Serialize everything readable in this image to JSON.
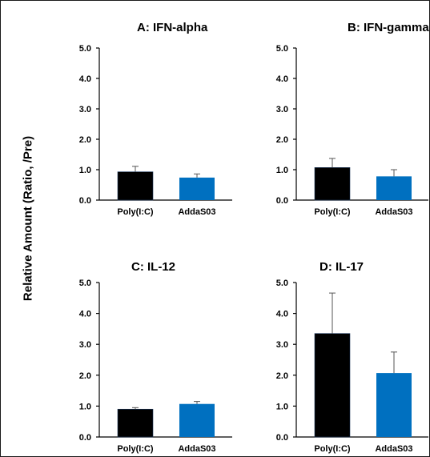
{
  "ylabel": "Relative Amount (Ratio, /Pre)",
  "colors": {
    "black_bar": "#000000",
    "blue_bar": "#0070C0",
    "axis": "#000000",
    "error_bar": "#555555"
  },
  "chart_data": [
    {
      "type": "bar",
      "title": "A: IFN-alpha",
      "categories": [
        "Poly(I:C)",
        "AddaS03"
      ],
      "values": [
        0.93,
        0.74
      ],
      "errors": [
        0.18,
        0.12
      ],
      "ylim": [
        0,
        5
      ],
      "yticks": [
        "0.0",
        "1.0",
        "2.0",
        "3.0",
        "4.0",
        "5.0"
      ],
      "grid": false
    },
    {
      "type": "bar",
      "title": "B: IFN-gamma",
      "categories": [
        "Poly(I:C)",
        "AddaS03"
      ],
      "values": [
        1.07,
        0.78
      ],
      "errors": [
        0.3,
        0.22
      ],
      "ylim": [
        0,
        5
      ],
      "yticks": [
        "0.0",
        "1.0",
        "2.0",
        "3.0",
        "4.0",
        "5.0"
      ],
      "grid": false
    },
    {
      "type": "bar",
      "title": "C: IL-12",
      "categories": [
        "Poly(I:C)",
        "AddaS03"
      ],
      "values": [
        0.9,
        1.07
      ],
      "errors": [
        0.05,
        0.08
      ],
      "ylim": [
        0,
        5
      ],
      "yticks": [
        "0.0",
        "1.0",
        "2.0",
        "3.0",
        "4.0",
        "5.0"
      ],
      "grid": false
    },
    {
      "type": "bar",
      "title": "D: IL-17",
      "categories": [
        "Poly(I:C)",
        "AddaS03"
      ],
      "values": [
        3.35,
        2.07
      ],
      "errors": [
        1.31,
        0.68
      ],
      "ylim": [
        0,
        5
      ],
      "yticks": [
        "0.0",
        "1.0",
        "2.0",
        "3.0",
        "4.0",
        "5.0"
      ],
      "grid": false
    }
  ]
}
